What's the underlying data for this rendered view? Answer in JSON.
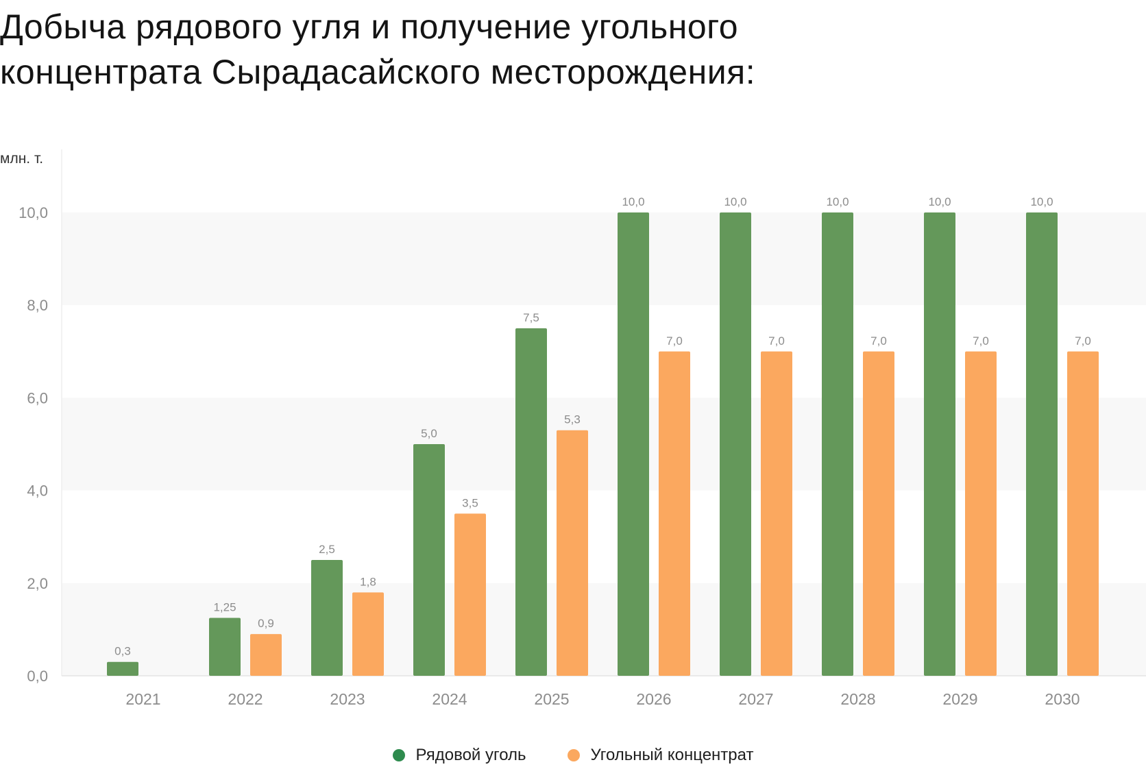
{
  "header": {
    "title_line1": "Добыча рядового угля и получение угольного",
    "title_line2": "концентрата Сырадасайского месторождения:"
  },
  "chart_data": {
    "type": "bar",
    "ylabel": "млн. т.",
    "ylim": [
      0,
      10
    ],
    "yticks": [
      0,
      2,
      4,
      6,
      8,
      10
    ],
    "ytick_labels": [
      "0,0",
      "2,0",
      "4,0",
      "6,0",
      "8,0",
      "10,0"
    ],
    "grid": "alternating horizontal bands",
    "legend_position": "bottom-center",
    "categories": [
      "2021",
      "2022",
      "2023",
      "2024",
      "2025",
      "2026",
      "2027",
      "2028",
      "2029",
      "2030"
    ],
    "series": [
      {
        "name": "Рядовой уголь",
        "color": "#64985a",
        "values": [
          0.3,
          1.25,
          2.5,
          5.0,
          7.5,
          10.0,
          10.0,
          10.0,
          10.0,
          10.0
        ],
        "labels": [
          "0,3",
          "1,25",
          "2,5",
          "5,0",
          "7,5",
          "10,0",
          "10,0",
          "10,0",
          "10,0",
          "10,0"
        ]
      },
      {
        "name": "Угольный концентрат",
        "color": "#fba85f",
        "values": [
          null,
          0.9,
          1.8,
          3.5,
          5.3,
          7.0,
          7.0,
          7.0,
          7.0,
          7.0
        ],
        "labels": [
          null,
          "0,9",
          "1,8",
          "3,5",
          "5,3",
          "7,0",
          "7,0",
          "7,0",
          "7,0",
          "7,0"
        ]
      }
    ]
  }
}
